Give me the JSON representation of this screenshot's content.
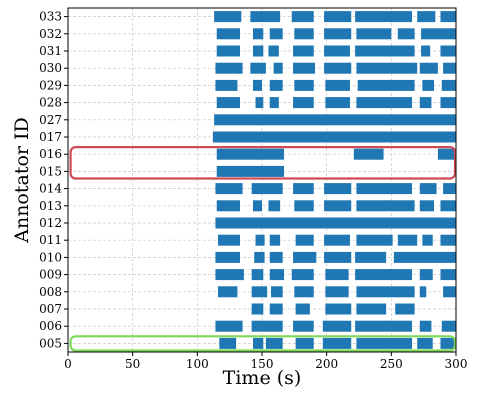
{
  "chart_data": {
    "type": "broken-bar-timeline",
    "xlabel": "Time (s)",
    "ylabel": "Annotator ID",
    "xlim": [
      0,
      300
    ],
    "xticks": [
      0,
      50,
      100,
      150,
      200,
      250,
      300
    ],
    "grid": true,
    "colors": {
      "bar": "#1f77b4",
      "highlight_red": "#d04a55",
      "highlight_green": "#7ed957",
      "grid": "#c8c8c8"
    },
    "annotators": [
      {
        "id": "033",
        "segments": [
          [
            113,
            134
          ],
          [
            141,
            164
          ],
          [
            173,
            190
          ],
          [
            198,
            219
          ],
          [
            222,
            266
          ],
          [
            270,
            284
          ],
          [
            288,
            300
          ]
        ]
      },
      {
        "id": "032",
        "segments": [
          [
            115,
            133
          ],
          [
            143,
            151
          ],
          [
            156,
            166
          ],
          [
            175,
            190
          ],
          [
            198,
            219
          ],
          [
            223,
            250
          ],
          [
            255,
            268
          ],
          [
            273,
            300
          ]
        ]
      },
      {
        "id": "031",
        "segments": [
          [
            115,
            133
          ],
          [
            143,
            151
          ],
          [
            155,
            163
          ],
          [
            174,
            190
          ],
          [
            198,
            218
          ],
          [
            222,
            268
          ],
          [
            273,
            280
          ],
          [
            288,
            300
          ]
        ]
      },
      {
        "id": "030",
        "segments": [
          [
            114,
            135
          ],
          [
            141,
            153
          ],
          [
            159,
            166
          ],
          [
            174,
            191
          ],
          [
            198,
            219
          ],
          [
            223,
            270
          ],
          [
            272,
            286
          ],
          [
            290,
            300
          ]
        ]
      },
      {
        "id": "029",
        "segments": [
          [
            114,
            131
          ],
          [
            143,
            150
          ],
          [
            156,
            166
          ],
          [
            175,
            190
          ],
          [
            199,
            218
          ],
          [
            224,
            268
          ],
          [
            274,
            283
          ],
          [
            289,
            300
          ]
        ]
      },
      {
        "id": "028",
        "segments": [
          [
            115,
            133
          ],
          [
            145,
            151
          ],
          [
            156,
            163
          ],
          [
            174,
            190
          ],
          [
            199,
            218
          ],
          [
            223,
            266
          ],
          [
            272,
            281
          ],
          [
            288,
            300
          ]
        ]
      },
      {
        "id": "027",
        "segments": [
          [
            113,
            300
          ]
        ]
      },
      {
        "id": "017",
        "segments": [
          [
            112,
            300
          ]
        ]
      },
      {
        "id": "016",
        "segments": [
          [
            115,
            167
          ],
          [
            221,
            244
          ],
          [
            286,
            300
          ]
        ]
      },
      {
        "id": "015",
        "segments": [
          [
            115,
            167
          ]
        ]
      },
      {
        "id": "014",
        "segments": [
          [
            114,
            135
          ],
          [
            142,
            166
          ],
          [
            174,
            190
          ],
          [
            198,
            219
          ],
          [
            223,
            266
          ],
          [
            272,
            285
          ],
          [
            290,
            300
          ]
        ]
      },
      {
        "id": "013",
        "segments": [
          [
            115,
            133
          ],
          [
            143,
            150
          ],
          [
            155,
            164
          ],
          [
            175,
            190
          ],
          [
            198,
            219
          ],
          [
            223,
            268
          ],
          [
            272,
            283
          ],
          [
            288,
            300
          ]
        ]
      },
      {
        "id": "012",
        "segments": [
          [
            114,
            300
          ]
        ]
      },
      {
        "id": "011",
        "segments": [
          [
            116,
            133
          ],
          [
            145,
            152
          ],
          [
            156,
            164
          ],
          [
            176,
            190
          ],
          [
            198,
            218
          ],
          [
            223,
            251
          ],
          [
            255,
            270
          ],
          [
            274,
            282
          ],
          [
            288,
            300
          ]
        ]
      },
      {
        "id": "010",
        "segments": [
          [
            114,
            133
          ],
          [
            144,
            152
          ],
          [
            156,
            166
          ],
          [
            174,
            192
          ],
          [
            198,
            219
          ],
          [
            222,
            246
          ],
          [
            252,
            300
          ]
        ]
      },
      {
        "id": "009",
        "segments": [
          [
            114,
            136
          ],
          [
            142,
            151
          ],
          [
            156,
            167
          ],
          [
            173,
            190
          ],
          [
            199,
            217
          ],
          [
            222,
            266
          ],
          [
            272,
            282
          ],
          [
            288,
            300
          ]
        ]
      },
      {
        "id": "008",
        "segments": [
          [
            116,
            131
          ],
          [
            142,
            154
          ],
          [
            157,
            166
          ],
          [
            175,
            190
          ],
          [
            199,
            217
          ],
          [
            223,
            268
          ],
          [
            272,
            277
          ],
          [
            290,
            300
          ]
        ]
      },
      {
        "id": "007",
        "segments": [
          [
            142,
            151
          ],
          [
            156,
            166
          ],
          [
            176,
            187
          ],
          [
            199,
            219
          ],
          [
            223,
            246
          ],
          [
            253,
            268
          ]
        ]
      },
      {
        "id": "006",
        "segments": [
          [
            114,
            135
          ],
          [
            142,
            166
          ],
          [
            174,
            190
          ],
          [
            197,
            219
          ],
          [
            222,
            266
          ],
          [
            272,
            281
          ],
          [
            289,
            300
          ]
        ]
      },
      {
        "id": "005",
        "segments": [
          [
            117,
            130
          ],
          [
            143,
            151
          ],
          [
            153,
            166
          ],
          [
            176,
            190
          ],
          [
            197,
            219
          ],
          [
            223,
            266
          ],
          [
            270,
            282
          ],
          [
            288,
            300
          ]
        ]
      }
    ],
    "highlight_boxes": [
      {
        "color": "red",
        "rows": [
          "016",
          "015"
        ],
        "x_range": [
          2,
          300
        ]
      },
      {
        "color": "green",
        "rows": [
          "005"
        ],
        "x_range": [
          2,
          300
        ]
      }
    ]
  }
}
